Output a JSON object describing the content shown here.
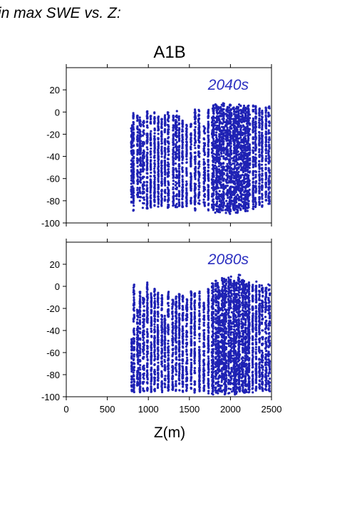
{
  "header_text": "in max SWE vs. Z:",
  "chart_data": [
    {
      "type": "scatter",
      "title": "A1B",
      "panel_label": "2040s",
      "xlabel": "",
      "ylabel": "",
      "xlim": [
        0,
        2500
      ],
      "ylim": [
        -100,
        40
      ],
      "yticks": [
        20,
        0,
        -20,
        -40,
        -60,
        -80,
        -100
      ],
      "point_color": "#1f22b4",
      "label_color": "#2b2fc0",
      "grid": false,
      "columns": [
        {
          "x": 800,
          "y_min": -82,
          "y_max": -12
        },
        {
          "x": 820,
          "y_min": -89,
          "y_max": 2
        },
        {
          "x": 870,
          "y_min": -77,
          "y_max": -3
        },
        {
          "x": 900,
          "y_min": -84,
          "y_max": -4
        },
        {
          "x": 940,
          "y_min": -87,
          "y_max": -8
        },
        {
          "x": 990,
          "y_min": -88,
          "y_max": 3
        },
        {
          "x": 1030,
          "y_min": -87,
          "y_max": -3
        },
        {
          "x": 1080,
          "y_min": -85,
          "y_max": 2
        },
        {
          "x": 1120,
          "y_min": -86,
          "y_max": -4
        },
        {
          "x": 1160,
          "y_min": -85,
          "y_max": -4
        },
        {
          "x": 1200,
          "y_min": -80,
          "y_max": -2
        },
        {
          "x": 1240,
          "y_min": -87,
          "y_max": 0
        },
        {
          "x": 1300,
          "y_min": -85,
          "y_max": -2
        },
        {
          "x": 1340,
          "y_min": -86,
          "y_max": 1
        },
        {
          "x": 1380,
          "y_min": -85,
          "y_max": -3
        },
        {
          "x": 1420,
          "y_min": -86,
          "y_max": -6
        },
        {
          "x": 1470,
          "y_min": -85,
          "y_max": -6
        },
        {
          "x": 1520,
          "y_min": -83,
          "y_max": -8
        },
        {
          "x": 1570,
          "y_min": -89,
          "y_max": 3
        },
        {
          "x": 1620,
          "y_min": -86,
          "y_max": 2
        },
        {
          "x": 1680,
          "y_min": -85,
          "y_max": -12
        },
        {
          "x": 1730,
          "y_min": -89,
          "y_max": 4
        },
        {
          "x": 1780,
          "y_min": -89,
          "y_max": 6
        },
        {
          "x": 1830,
          "y_min": -91,
          "y_max": 7
        },
        {
          "x": 1870,
          "y_min": -92,
          "y_max": 5
        },
        {
          "x": 1910,
          "y_min": -89,
          "y_max": 8
        },
        {
          "x": 1950,
          "y_min": -91,
          "y_max": 6
        },
        {
          "x": 1990,
          "y_min": -92,
          "y_max": 7
        },
        {
          "x": 2030,
          "y_min": -90,
          "y_max": 6
        },
        {
          "x": 2070,
          "y_min": -91,
          "y_max": 5
        },
        {
          "x": 2110,
          "y_min": -89,
          "y_max": 7
        },
        {
          "x": 2150,
          "y_min": -88,
          "y_max": 6
        },
        {
          "x": 2190,
          "y_min": -90,
          "y_max": 4
        },
        {
          "x": 2230,
          "y_min": -87,
          "y_max": 6
        },
        {
          "x": 2270,
          "y_min": -89,
          "y_max": 7
        },
        {
          "x": 2310,
          "y_min": -86,
          "y_max": 6
        },
        {
          "x": 2350,
          "y_min": -85,
          "y_max": 5
        },
        {
          "x": 2390,
          "y_min": -86,
          "y_max": 3
        },
        {
          "x": 2430,
          "y_min": -80,
          "y_max": 4
        },
        {
          "x": 2470,
          "y_min": -84,
          "y_max": 5
        }
      ]
    },
    {
      "type": "scatter",
      "panel_label": "2080s",
      "xlabel": "Z(m)",
      "ylabel": "",
      "xlim": [
        0,
        2500
      ],
      "ylim": [
        -100,
        40
      ],
      "xticks": [
        0,
        500,
        1000,
        1500,
        2000,
        2500
      ],
      "yticks": [
        20,
        0,
        -20,
        -40,
        -60,
        -80,
        -100
      ],
      "point_color": "#1f22b4",
      "label_color": "#2b2fc0",
      "grid": false,
      "columns": [
        {
          "x": 800,
          "y_min": -95,
          "y_max": -47
        },
        {
          "x": 820,
          "y_min": -96,
          "y_max": 2
        },
        {
          "x": 870,
          "y_min": -90,
          "y_max": -15
        },
        {
          "x": 900,
          "y_min": -96,
          "y_max": -5
        },
        {
          "x": 940,
          "y_min": -95,
          "y_max": -10
        },
        {
          "x": 990,
          "y_min": -96,
          "y_max": 7
        },
        {
          "x": 1030,
          "y_min": -96,
          "y_max": -6
        },
        {
          "x": 1080,
          "y_min": -95,
          "y_max": -2
        },
        {
          "x": 1120,
          "y_min": -94,
          "y_max": -5
        },
        {
          "x": 1160,
          "y_min": -96,
          "y_max": -8
        },
        {
          "x": 1200,
          "y_min": -92,
          "y_max": -25
        },
        {
          "x": 1240,
          "y_min": -96,
          "y_max": -4
        },
        {
          "x": 1300,
          "y_min": -95,
          "y_max": -12
        },
        {
          "x": 1340,
          "y_min": -96,
          "y_max": -5
        },
        {
          "x": 1380,
          "y_min": -98,
          "y_max": -7
        },
        {
          "x": 1420,
          "y_min": -96,
          "y_max": -8
        },
        {
          "x": 1470,
          "y_min": -95,
          "y_max": -10
        },
        {
          "x": 1520,
          "y_min": -94,
          "y_max": -2
        },
        {
          "x": 1570,
          "y_min": -97,
          "y_max": -6
        },
        {
          "x": 1620,
          "y_min": -96,
          "y_max": -4
        },
        {
          "x": 1680,
          "y_min": -95,
          "y_max": -12
        },
        {
          "x": 1730,
          "y_min": -97,
          "y_max": -2
        },
        {
          "x": 1780,
          "y_min": -98,
          "y_max": 3
        },
        {
          "x": 1830,
          "y_min": -98,
          "y_max": 5
        },
        {
          "x": 1870,
          "y_min": -97,
          "y_max": 0
        },
        {
          "x": 1910,
          "y_min": -98,
          "y_max": 8
        },
        {
          "x": 1950,
          "y_min": -98,
          "y_max": 7
        },
        {
          "x": 1990,
          "y_min": -97,
          "y_max": 9
        },
        {
          "x": 2030,
          "y_min": -97,
          "y_max": 5
        },
        {
          "x": 2070,
          "y_min": -98,
          "y_max": 4
        },
        {
          "x": 2110,
          "y_min": -96,
          "y_max": 11
        },
        {
          "x": 2150,
          "y_min": -97,
          "y_max": 6
        },
        {
          "x": 2190,
          "y_min": -98,
          "y_max": 3
        },
        {
          "x": 2230,
          "y_min": -96,
          "y_max": 4
        },
        {
          "x": 2270,
          "y_min": -97,
          "y_max": 2
        },
        {
          "x": 2310,
          "y_min": -96,
          "y_max": 5
        },
        {
          "x": 2350,
          "y_min": -95,
          "y_max": 3
        },
        {
          "x": 2390,
          "y_min": -96,
          "y_max": 1
        },
        {
          "x": 2430,
          "y_min": -94,
          "y_max": 0
        },
        {
          "x": 2470,
          "y_min": -95,
          "y_max": 2
        }
      ]
    }
  ]
}
